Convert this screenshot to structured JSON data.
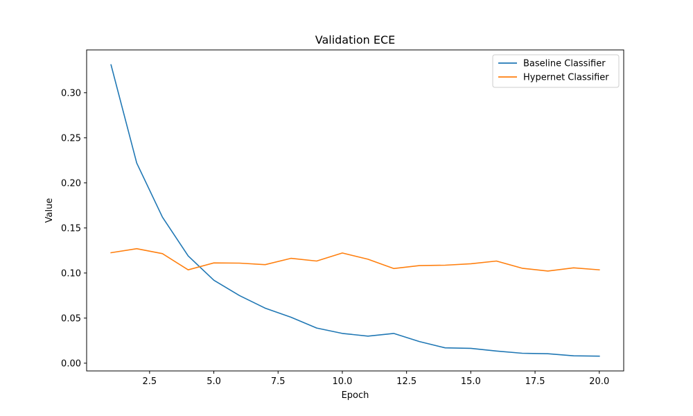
{
  "chart_data": {
    "type": "line",
    "title": "Validation ECE",
    "xlabel": "Epoch",
    "ylabel": "Value",
    "xlim": [
      0.05,
      20.95
    ],
    "ylim": [
      -0.0086,
      0.3475
    ],
    "x_ticks": [
      2.5,
      5.0,
      7.5,
      10.0,
      12.5,
      15.0,
      17.5,
      20.0
    ],
    "x_tick_labels": [
      "2.5",
      "5.0",
      "7.5",
      "10.0",
      "12.5",
      "15.0",
      "17.5",
      "20.0"
    ],
    "y_ticks": [
      0.0,
      0.05,
      0.1,
      0.15,
      0.2,
      0.25,
      0.3
    ],
    "y_tick_labels": [
      "0.00",
      "0.05",
      "0.10",
      "0.15",
      "0.20",
      "0.25",
      "0.30"
    ],
    "grid": false,
    "legend_position": "upper right",
    "x": [
      1,
      2,
      3,
      4,
      5,
      6,
      7,
      8,
      9,
      10,
      11,
      12,
      13,
      14,
      15,
      16,
      17,
      18,
      19,
      20
    ],
    "series": [
      {
        "name": "Baseline Classifier",
        "color": "#1f77b4",
        "values": [
          0.331,
          0.222,
          0.162,
          0.119,
          0.092,
          0.075,
          0.061,
          0.051,
          0.039,
          0.033,
          0.03,
          0.033,
          0.024,
          0.017,
          0.0165,
          0.0135,
          0.011,
          0.0105,
          0.0082,
          0.0078
        ]
      },
      {
        "name": "Hypernet Classifier",
        "color": "#ff7f0e",
        "values": [
          0.1225,
          0.127,
          0.1215,
          0.1035,
          0.1112,
          0.111,
          0.1093,
          0.1163,
          0.1133,
          0.1222,
          0.1153,
          0.105,
          0.1082,
          0.1087,
          0.1103,
          0.1133,
          0.1053,
          0.1022,
          0.1058,
          0.1035
        ]
      }
    ]
  }
}
